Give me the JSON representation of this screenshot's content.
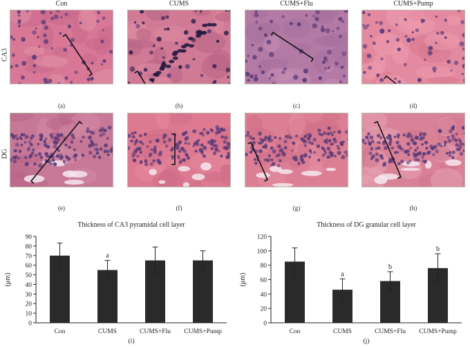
{
  "columns": [
    "Con",
    "CUMS",
    "CUMS+Flu",
    "CUMS+Pump"
  ],
  "rows": [
    "CA3",
    "DG"
  ],
  "panel_labels": [
    "(a)",
    "(b)",
    "(c)",
    "(d)",
    "(e)",
    "(f)",
    "(g)",
    "(h)"
  ],
  "colors": {
    "bar": "#2a2a2a",
    "tissue_base": "#e7809a",
    "nucleus": "#5b3a78",
    "dark_nucleus": "#2a1c46"
  },
  "chart_data": [
    {
      "type": "bar",
      "title": "Thickness of CA3 pyramidal cell layer",
      "ylabel": "(μm)",
      "xlabel": "",
      "categories": [
        "Con",
        "CUMS",
        "CUMS+Flu",
        "CUMS+Pump"
      ],
      "values": [
        70,
        55,
        65,
        65
      ],
      "errors": [
        13,
        10,
        14,
        10
      ],
      "annotations": [
        "",
        "a",
        "",
        ""
      ],
      "ylim": [
        0,
        90
      ],
      "yticks": [
        0,
        10,
        20,
        30,
        40,
        50,
        60,
        70,
        80,
        90
      ],
      "grid": false,
      "panel_label": "(i)"
    },
    {
      "type": "bar",
      "title": "Thickness of DG granular cell layer",
      "ylabel": "(μm)",
      "xlabel": "",
      "categories": [
        "Con",
        "CUMS",
        "CUMS+Flu",
        "CUMS+Pump"
      ],
      "values": [
        85,
        46,
        58,
        76
      ],
      "errors": [
        19,
        15,
        13,
        20
      ],
      "annotations": [
        "",
        "a",
        "b",
        "b"
      ],
      "ylim": [
        0,
        120
      ],
      "yticks": [
        0,
        20,
        40,
        60,
        80,
        100,
        120
      ],
      "grid": false,
      "panel_label": "(j)"
    }
  ]
}
